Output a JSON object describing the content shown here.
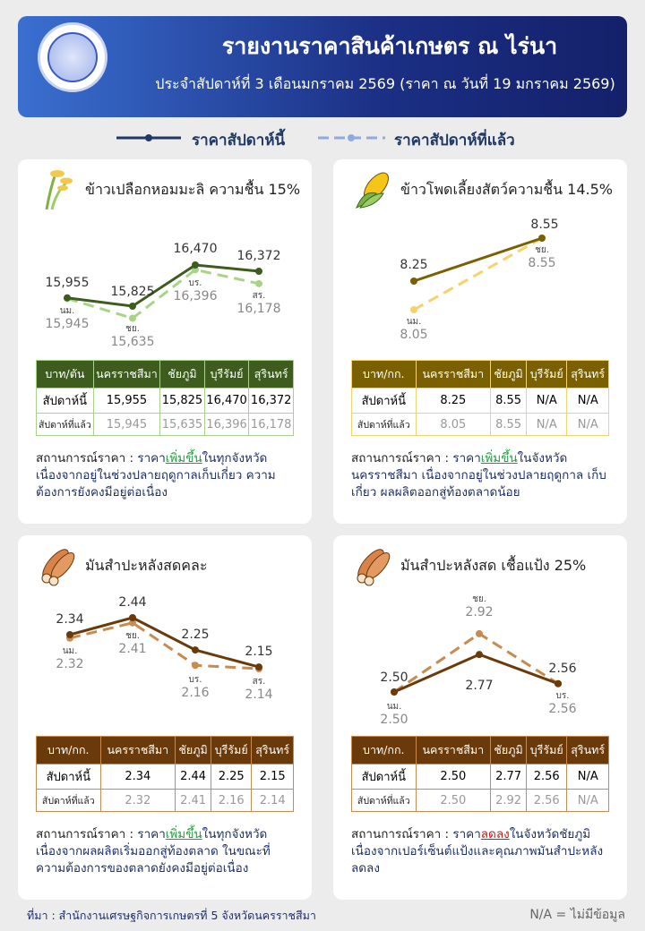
{
  "header": {
    "title": "รายงานราคาสินค้าเกษตร ณ ไร่นา",
    "subtitle": "ประจำสัปดาห์ที่ 3 เดือนมกราคม 2569 (ราคา ณ วันที่ 19 มกราคม 2569)"
  },
  "legend": {
    "this_week": "ราคาสัปดาห์นี้",
    "last_week": "ราคาสัปดาห์ที่แล้ว",
    "this_color": "#1f3864",
    "last_color": "#8faadc"
  },
  "panels": [
    {
      "title": "ข้าวเปลือกหอมมะลิ ความชื้น 15%",
      "icon": "rice-icon",
      "color": "#3d5c1e",
      "light": "#a8d48a",
      "table": {
        "headers": [
          "บาท/ตัน",
          "นครราชสีมา",
          "ชัยภูมิ",
          "บุรีรัมย์",
          "สุรินทร์"
        ],
        "this": [
          "สัปดาห์นี้",
          "15,955",
          "15,825",
          "16,470",
          "16,372"
        ],
        "last": [
          "สัปดาห์ที่แล้ว",
          "15,945",
          "15,635",
          "16,396",
          "16,178"
        ]
      },
      "status": {
        "label": "สถานการณ์ราคา : ",
        "pre": "ราคา",
        "trend": "เพิ่มขึ้น",
        "trend_dir": "up",
        "post": "ในทุกจังหวัด เนื่องจากอยู่ในช่วงปลายฤดูกาลเก็บเกี่ยว ความต้องการยังคงมีอยู่ต่อเนื่อง"
      }
    },
    {
      "title": "ข้าวโพดเลี้ยงสัตว์ความชื้น 14.5%",
      "icon": "corn-icon",
      "color": "#7a6000",
      "light": "#f5d26b",
      "table": {
        "headers": [
          "บาท/กก.",
          "นครราชสีมา",
          "ชัยภูมิ",
          "บุรีรัมย์",
          "สุรินทร์"
        ],
        "this": [
          "สัปดาห์นี้",
          "8.25",
          "8.55",
          "N/A",
          "N/A"
        ],
        "last": [
          "สัปดาห์ที่แล้ว",
          "8.05",
          "8.55",
          "N/A",
          "N/A"
        ]
      },
      "status": {
        "label": "สถานการณ์ราคา : ",
        "pre": "ราคา",
        "trend": "เพิ่มขึ้น",
        "trend_dir": "up",
        "post": "ในจังหวัด นครราชสีมา เนื่องจากอยู่ในช่วงปลายฤดูกาล เก็บเกี่ยว ผลผลิตออกสู่ท้องตลาดน้อย"
      }
    },
    {
      "title": "มันสำปะหลังสดคละ",
      "icon": "cassava-icon",
      "color": "#6b3a0a",
      "light": "#c98a50",
      "table": {
        "headers": [
          "บาท/กก.",
          "นครราชสีมา",
          "ชัยภูมิ",
          "บุรีรัมย์",
          "สุรินทร์"
        ],
        "this": [
          "สัปดาห์นี้",
          "2.34",
          "2.44",
          "2.25",
          "2.15"
        ],
        "last": [
          "สัปดาห์ที่แล้ว",
          "2.32",
          "2.41",
          "2.16",
          "2.14"
        ]
      },
      "status": {
        "label": "สถานการณ์ราคา : ",
        "pre": "ราคา",
        "trend": "เพิ่มขึ้น",
        "trend_dir": "up",
        "post": "ในทุกจังหวัด เนื่องจากผลผลิตเริ่มออกสู่ท้องตลาด ในขณะที่ ความต้องการของตลาดยังคงมีอยู่ต่อเนื่อง"
      }
    },
    {
      "title": "มันสำปะหลังสด เชื้อแป้ง 25%",
      "icon": "cassava-icon",
      "color": "#6b3a0a",
      "light": "#c98a50",
      "table": {
        "headers": [
          "บาท/กก.",
          "นครราชสีมา",
          "ชัยภูมิ",
          "บุรีรัมย์",
          "สุรินทร์"
        ],
        "this": [
          "สัปดาห์นี้",
          "2.50",
          "2.77",
          "2.56",
          "N/A"
        ],
        "last": [
          "สัปดาห์ที่แล้ว",
          "2.50",
          "2.92",
          "2.56",
          "N/A"
        ]
      },
      "status": {
        "label": "สถานการณ์ราคา : ",
        "pre": "ราคา",
        "trend": "ลดลง",
        "trend_dir": "down",
        "post": "ในจังหวัดชัยภูมิ เนื่องจากเปอร์เซ็นต์แป้งและคุณภาพมันสำปะหลัง ลดลง"
      }
    }
  ],
  "chart_data": [
    {
      "type": "line",
      "categories": [
        "นม.",
        "ชย.",
        "บร.",
        "สร."
      ],
      "series": [
        {
          "name": "ราคาสัปดาห์นี้",
          "values": [
            15955,
            15825,
            16470,
            16372
          ]
        },
        {
          "name": "ราคาสัปดาห์ที่แล้ว",
          "values": [
            15945,
            15635,
            16396,
            16178
          ]
        }
      ]
    },
    {
      "type": "line",
      "categories": [
        "นม.",
        "ชย."
      ],
      "series": [
        {
          "name": "ราคาสัปดาห์นี้",
          "values": [
            8.25,
            8.55
          ]
        },
        {
          "name": "ราคาสัปดาห์ที่แล้ว",
          "values": [
            8.05,
            8.55
          ]
        }
      ]
    },
    {
      "type": "line",
      "categories": [
        "นม.",
        "ชย.",
        "บร.",
        "สร."
      ],
      "series": [
        {
          "name": "ราคาสัปดาห์นี้",
          "values": [
            2.34,
            2.44,
            2.25,
            2.15
          ]
        },
        {
          "name": "ราคาสัปดาห์ที่แล้ว",
          "values": [
            2.32,
            2.41,
            2.16,
            2.14
          ]
        }
      ]
    },
    {
      "type": "line",
      "categories": [
        "นม.",
        "ชย.",
        "บร."
      ],
      "series": [
        {
          "name": "ราคาสัปดาห์นี้",
          "values": [
            2.5,
            2.77,
            2.56
          ]
        },
        {
          "name": "ราคาสัปดาห์ที่แล้ว",
          "values": [
            2.5,
            2.92,
            2.56
          ]
        }
      ]
    }
  ],
  "footer": {
    "source": "ที่มา : สำนักงานเศรษฐกิจการเกษตรที่ 5 จังหวัดนครราชสีมา",
    "note": "N/A = ไม่มีข้อมูล"
  }
}
